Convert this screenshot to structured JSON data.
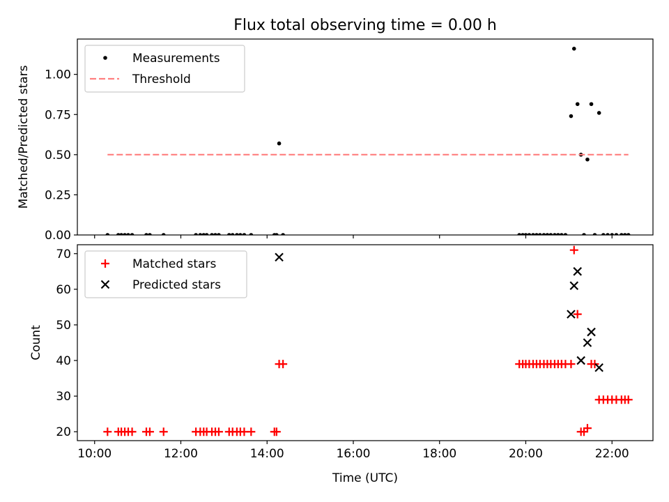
{
  "figure": {
    "title": "Flux total observing time = 0.00 h"
  },
  "chart_data": [
    {
      "type": "scatter",
      "title": "Flux total observing time = 0.00 h",
      "xlabel": "",
      "ylabel": "Matched/Predicted stars",
      "x_unit": "hours (UTC)",
      "xlim": [
        9.6,
        22.95
      ],
      "ylim": [
        0.0,
        1.22
      ],
      "yticks": [
        0.0,
        0.25,
        0.5,
        0.75,
        1.0
      ],
      "ytick_labels": [
        "0.00",
        "0.25",
        "0.50",
        "0.75",
        "1.00"
      ],
      "xticks": [
        10,
        12,
        14,
        16,
        18,
        20,
        22
      ],
      "grid": false,
      "legend_position": "top-left",
      "legend": [
        "Measurements",
        "Threshold"
      ],
      "series": [
        {
          "name": "Measurements",
          "marker": "dot",
          "color": "#000000",
          "points": [
            [
              10.3,
              0
            ],
            [
              10.55,
              0
            ],
            [
              10.62,
              0
            ],
            [
              10.7,
              0
            ],
            [
              10.78,
              0
            ],
            [
              10.87,
              0
            ],
            [
              11.2,
              0
            ],
            [
              11.28,
              0
            ],
            [
              11.6,
              0
            ],
            [
              12.35,
              0
            ],
            [
              12.45,
              0
            ],
            [
              12.53,
              0
            ],
            [
              12.6,
              0
            ],
            [
              12.72,
              0
            ],
            [
              12.8,
              0
            ],
            [
              12.88,
              0
            ],
            [
              13.12,
              0
            ],
            [
              13.2,
              0
            ],
            [
              13.3,
              0
            ],
            [
              13.38,
              0
            ],
            [
              13.47,
              0
            ],
            [
              13.63,
              0
            ],
            [
              14.17,
              0
            ],
            [
              14.22,
              0
            ],
            [
              14.28,
              0.57
            ],
            [
              14.37,
              0
            ],
            [
              19.85,
              0
            ],
            [
              19.93,
              0
            ],
            [
              20.0,
              0
            ],
            [
              20.08,
              0
            ],
            [
              20.17,
              0
            ],
            [
              20.25,
              0
            ],
            [
              20.33,
              0
            ],
            [
              20.42,
              0
            ],
            [
              20.5,
              0
            ],
            [
              20.58,
              0
            ],
            [
              20.67,
              0
            ],
            [
              20.75,
              0
            ],
            [
              20.83,
              0
            ],
            [
              20.92,
              0
            ],
            [
              21.05,
              0.74
            ],
            [
              21.12,
              1.16
            ],
            [
              21.2,
              0.815
            ],
            [
              21.28,
              0.5
            ],
            [
              21.35,
              0
            ],
            [
              21.43,
              0.47
            ],
            [
              21.52,
              0.815
            ],
            [
              21.6,
              0
            ],
            [
              21.7,
              0.76
            ],
            [
              21.8,
              0
            ],
            [
              21.9,
              0
            ],
            [
              22.0,
              0
            ],
            [
              22.1,
              0
            ],
            [
              22.22,
              0
            ],
            [
              22.3,
              0
            ],
            [
              22.38,
              0
            ]
          ]
        },
        {
          "name": "Threshold",
          "style": "dashed",
          "color": "#ff7f7f",
          "points": [
            [
              10.3,
              0.5
            ],
            [
              22.38,
              0.5
            ]
          ]
        }
      ]
    },
    {
      "type": "scatter",
      "title": "",
      "xlabel": "Time (UTC)",
      "ylabel": "Count",
      "x_unit": "hours (UTC)",
      "xlim": [
        9.6,
        22.95
      ],
      "ylim": [
        17.5,
        72.5
      ],
      "yticks": [
        20,
        30,
        40,
        50,
        60,
        70
      ],
      "xticks": [
        10,
        12,
        14,
        16,
        18,
        20,
        22
      ],
      "xtick_labels": [
        "10:00",
        "12:00",
        "14:00",
        "16:00",
        "18:00",
        "20:00",
        "22:00"
      ],
      "grid": false,
      "legend_position": "top-left",
      "legend": [
        "Matched stars",
        "Predicted stars"
      ],
      "series": [
        {
          "name": "Matched stars",
          "marker": "plus",
          "color": "#ff0000",
          "points": [
            [
              10.3,
              20
            ],
            [
              10.55,
              20
            ],
            [
              10.62,
              20
            ],
            [
              10.7,
              20
            ],
            [
              10.78,
              20
            ],
            [
              10.87,
              20
            ],
            [
              11.2,
              20
            ],
            [
              11.28,
              20
            ],
            [
              11.6,
              20
            ],
            [
              12.35,
              20
            ],
            [
              12.45,
              20
            ],
            [
              12.53,
              20
            ],
            [
              12.6,
              20
            ],
            [
              12.72,
              20
            ],
            [
              12.8,
              20
            ],
            [
              12.88,
              20
            ],
            [
              13.12,
              20
            ],
            [
              13.2,
              20
            ],
            [
              13.3,
              20
            ],
            [
              13.38,
              20
            ],
            [
              13.47,
              20
            ],
            [
              13.63,
              20
            ],
            [
              14.17,
              20
            ],
            [
              14.22,
              20
            ],
            [
              14.28,
              39
            ],
            [
              14.37,
              39
            ],
            [
              19.85,
              39
            ],
            [
              19.93,
              39
            ],
            [
              20.0,
              39
            ],
            [
              20.08,
              39
            ],
            [
              20.17,
              39
            ],
            [
              20.25,
              39
            ],
            [
              20.33,
              39
            ],
            [
              20.42,
              39
            ],
            [
              20.5,
              39
            ],
            [
              20.58,
              39
            ],
            [
              20.67,
              39
            ],
            [
              20.75,
              39
            ],
            [
              20.83,
              39
            ],
            [
              20.92,
              39
            ],
            [
              21.05,
              39
            ],
            [
              21.12,
              71
            ],
            [
              21.2,
              53
            ],
            [
              21.28,
              20
            ],
            [
              21.35,
              20
            ],
            [
              21.43,
              21
            ],
            [
              21.52,
              39
            ],
            [
              21.6,
              39
            ],
            [
              21.7,
              29
            ],
            [
              21.8,
              29
            ],
            [
              21.9,
              29
            ],
            [
              22.0,
              29
            ],
            [
              22.1,
              29
            ],
            [
              22.22,
              29
            ],
            [
              22.3,
              29
            ],
            [
              22.38,
              29
            ]
          ]
        },
        {
          "name": "Predicted stars",
          "marker": "x",
          "color": "#000000",
          "points": [
            [
              14.28,
              69
            ],
            [
              21.05,
              53
            ],
            [
              21.12,
              61
            ],
            [
              21.2,
              65
            ],
            [
              21.28,
              40
            ],
            [
              21.43,
              45
            ],
            [
              21.52,
              48
            ],
            [
              21.7,
              38
            ]
          ]
        }
      ]
    }
  ]
}
